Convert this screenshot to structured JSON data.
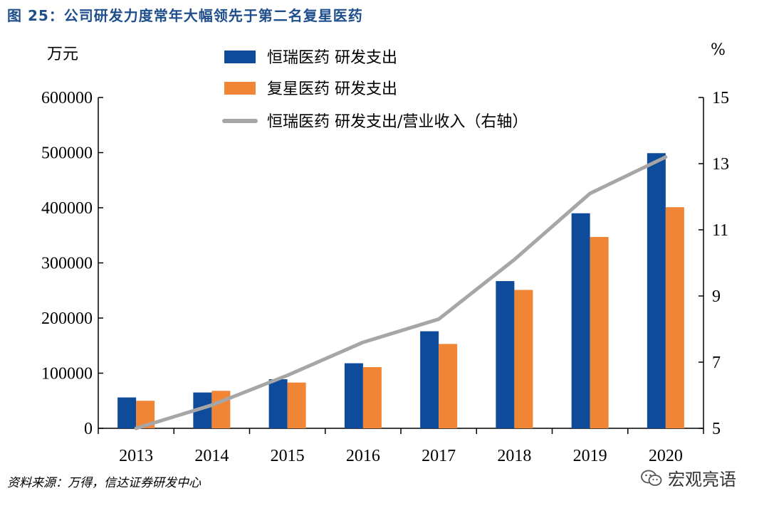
{
  "figure": {
    "title": "图 25：公司研发力度常年大幅领先于第二名复星医药",
    "source": "资料来源：万得，信达证券研发中心",
    "watermark": "宏观亮语",
    "watermark_icon": "wechat-icon"
  },
  "chart_data": {
    "type": "bar",
    "title": "",
    "ylabel": "万元",
    "ylabel_right": "%",
    "categories": [
      "2013",
      "2014",
      "2015",
      "2016",
      "2017",
      "2018",
      "2019",
      "2020"
    ],
    "ylim": [
      0,
      600000
    ],
    "yticks": [
      0,
      100000,
      200000,
      300000,
      400000,
      500000,
      600000
    ],
    "ylim_right": [
      5,
      15
    ],
    "yticks_right": [
      5,
      7,
      9,
      11,
      13,
      15
    ],
    "grid": false,
    "legend_position": "top",
    "series": [
      {
        "name": "恒瑞医药 研发支出",
        "kind": "bar",
        "axis": "left",
        "color": "#0e4b9a",
        "values": [
          56000,
          65000,
          89000,
          118000,
          176000,
          267000,
          390000,
          499000
        ]
      },
      {
        "name": "复星医药 研发支出",
        "kind": "bar",
        "axis": "left",
        "color": "#ef8535",
        "values": [
          50000,
          68000,
          83000,
          111000,
          153000,
          251000,
          347000,
          401000
        ]
      },
      {
        "name": "恒瑞医药 研发支出/营业收入（右轴）",
        "kind": "line",
        "axis": "right",
        "color": "#a6a6a6",
        "values": [
          5.0,
          5.7,
          6.6,
          7.6,
          8.3,
          10.1,
          12.1,
          13.2
        ]
      }
    ]
  }
}
